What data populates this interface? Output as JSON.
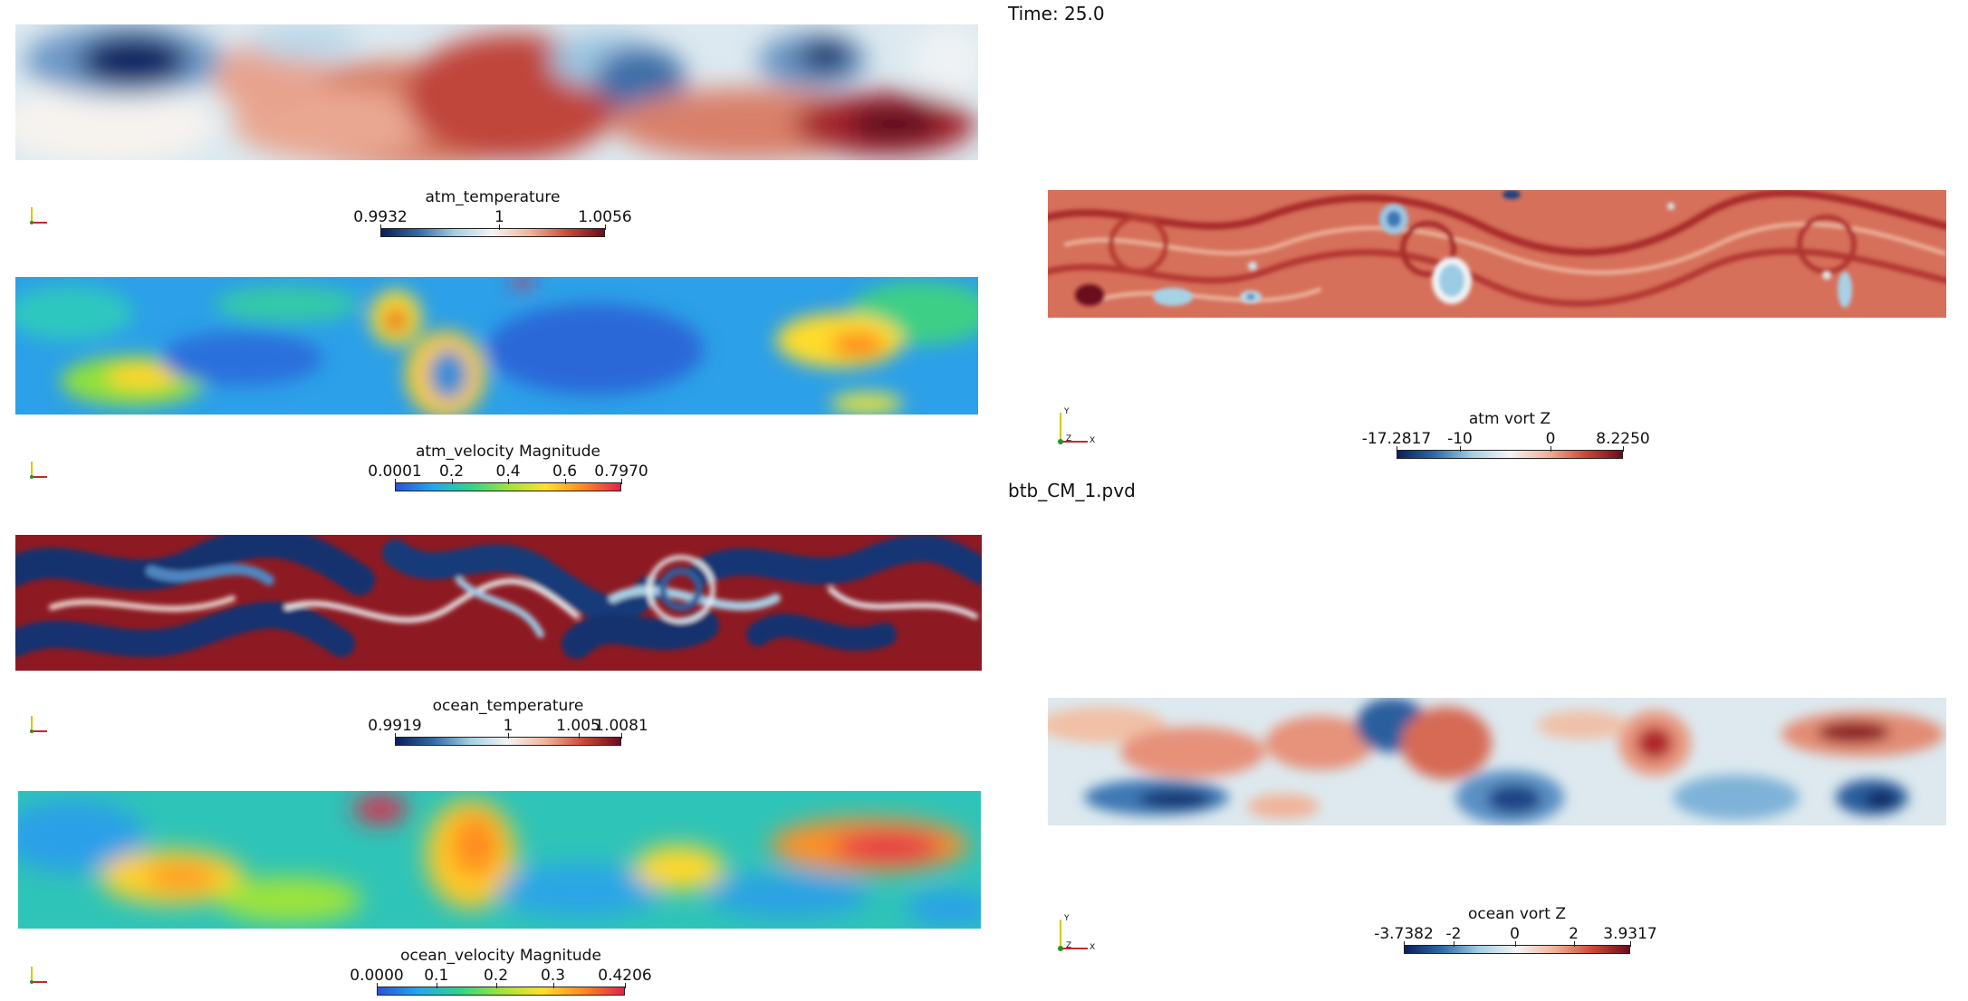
{
  "overlay": {
    "time_label": "Time: 25.0",
    "file_label": "btb_CM_1.pvd"
  },
  "legends": {
    "atm_temperature": {
      "title": "atm_temperature",
      "ticks": [
        "0.9932",
        "1",
        "1.0056"
      ]
    },
    "atm_velocity": {
      "title": "atm_velocity Magnitude",
      "ticks": [
        "0.0001",
        "0.2",
        "0.4",
        "0.6",
        "0.7970"
      ]
    },
    "ocean_temperature": {
      "title": "ocean_temperature",
      "ticks": [
        "0.9919",
        "1",
        "1.005",
        "1.0081"
      ]
    },
    "ocean_velocity": {
      "title": "ocean_velocity Magnitude",
      "ticks": [
        "0.0000",
        "0.1",
        "0.2",
        "0.3",
        "0.4206"
      ]
    },
    "atm_vort": {
      "title": "atm vort Z",
      "ticks": [
        "-17.2817",
        "-10",
        "0",
        "8.2250"
      ]
    },
    "ocean_vort": {
      "title": "ocean vort Z",
      "ticks": [
        "-3.7382",
        "-2",
        "0",
        "2",
        "3.9317"
      ]
    }
  },
  "axes_labels": {
    "y": "Y",
    "z": "Z",
    "x": "X"
  },
  "colormaps": {
    "diverging": [
      "#0b1d5b",
      "#2f6aa8",
      "#a6cfe3",
      "#f4f4f4",
      "#f0b49a",
      "#cc4a36",
      "#6e0a1c"
    ],
    "jet": [
      "#2a52d8",
      "#22a8ee",
      "#2ed38a",
      "#9ee43a",
      "#ffe02a",
      "#ff8a22",
      "#e4224a"
    ]
  }
}
